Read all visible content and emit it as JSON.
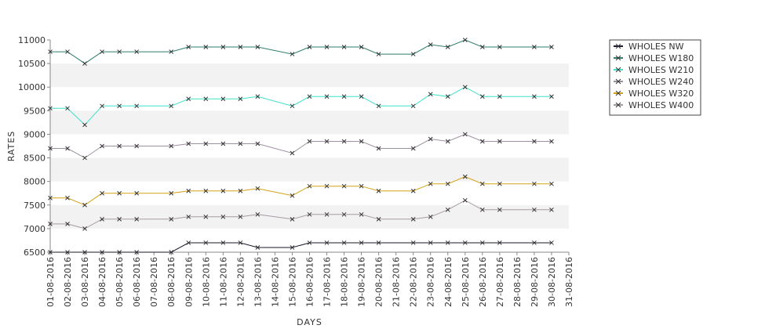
{
  "chart_data": {
    "type": "line",
    "title": "",
    "xlabel": "DAYS",
    "ylabel": "RATES",
    "ylim": [
      6500,
      11000
    ],
    "y_ticks": [
      6500,
      7000,
      7500,
      8000,
      8500,
      9000,
      9500,
      10000,
      10500,
      11000
    ],
    "grid": "alternating horizontal bands",
    "legend_position": "top-right",
    "x": [
      "01-08-2016",
      "02-08-2016",
      "03-08-2016",
      "04-08-2016",
      "05-08-2016",
      "06-08-2016",
      "07-08-2016",
      "08-08-2016",
      "09-08-2016",
      "10-08-2016",
      "11-08-2016",
      "12-08-2016",
      "13-08-2016",
      "14-08-2016",
      "15-08-2016",
      "16-08-2016",
      "17-08-2016",
      "18-08-2016",
      "19-08-2016",
      "20-08-2016",
      "21-08-2016",
      "22-08-2016",
      "23-08-2016",
      "24-08-2016",
      "25-08-2016",
      "26-08-2016",
      "27-08-2016",
      "28-08-2016",
      "29-08-2016",
      "30-08-2016",
      "31-08-2016"
    ],
    "series": [
      {
        "name": "WHOLES NW",
        "color": "#1a1a2e",
        "values": [
          6500,
          6500,
          6500,
          6500,
          6500,
          6500,
          null,
          6500,
          6700,
          6700,
          6700,
          6700,
          6600,
          null,
          6600,
          6700,
          6700,
          6700,
          6700,
          6700,
          null,
          6700,
          6700,
          6700,
          6700,
          6700,
          6700,
          null,
          6700,
          6700,
          null
        ]
      },
      {
        "name": "WHOLES W180",
        "color": "#2e7d6b",
        "values": [
          10750,
          10750,
          10500,
          10750,
          10750,
          10750,
          null,
          10750,
          10850,
          10850,
          10850,
          10850,
          10850,
          null,
          10700,
          10850,
          10850,
          10850,
          10850,
          10700,
          null,
          10700,
          10900,
          10850,
          11000,
          10850,
          10850,
          null,
          10850,
          10850,
          null
        ]
      },
      {
        "name": "WHOLES W210",
        "color": "#40e0c8",
        "values": [
          9550,
          9550,
          9200,
          9600,
          9600,
          9600,
          null,
          9600,
          9750,
          9750,
          9750,
          9750,
          9800,
          null,
          9600,
          9800,
          9800,
          9800,
          9800,
          9600,
          null,
          9600,
          9850,
          9800,
          10000,
          9800,
          9800,
          null,
          9800,
          9800,
          null
        ]
      },
      {
        "name": "WHOLES W240",
        "color": "#9e8fa0",
        "values": [
          8700,
          8700,
          8500,
          8750,
          8750,
          8750,
          null,
          8750,
          8800,
          8800,
          8800,
          8800,
          8800,
          null,
          8600,
          8850,
          8850,
          8850,
          8850,
          8700,
          null,
          8700,
          8900,
          8850,
          9000,
          8850,
          8850,
          null,
          8850,
          8850,
          null
        ]
      },
      {
        "name": "WHOLES W320",
        "color": "#d4a017",
        "values": [
          7650,
          7650,
          7500,
          7750,
          7750,
          7750,
          null,
          7750,
          7800,
          7800,
          7800,
          7800,
          7850,
          null,
          7700,
          7900,
          7900,
          7900,
          7900,
          7800,
          null,
          7800,
          7950,
          7950,
          8100,
          7950,
          7950,
          null,
          7950,
          7950,
          null
        ]
      },
      {
        "name": "WHOLES W400",
        "color": "#a89aa4",
        "values": [
          7100,
          7100,
          7000,
          7200,
          7200,
          7200,
          null,
          7200,
          7250,
          7250,
          7250,
          7250,
          7300,
          null,
          7200,
          7300,
          7300,
          7300,
          7300,
          7200,
          null,
          7200,
          7250,
          7400,
          7600,
          7400,
          7400,
          null,
          7400,
          7400,
          null
        ]
      }
    ]
  }
}
